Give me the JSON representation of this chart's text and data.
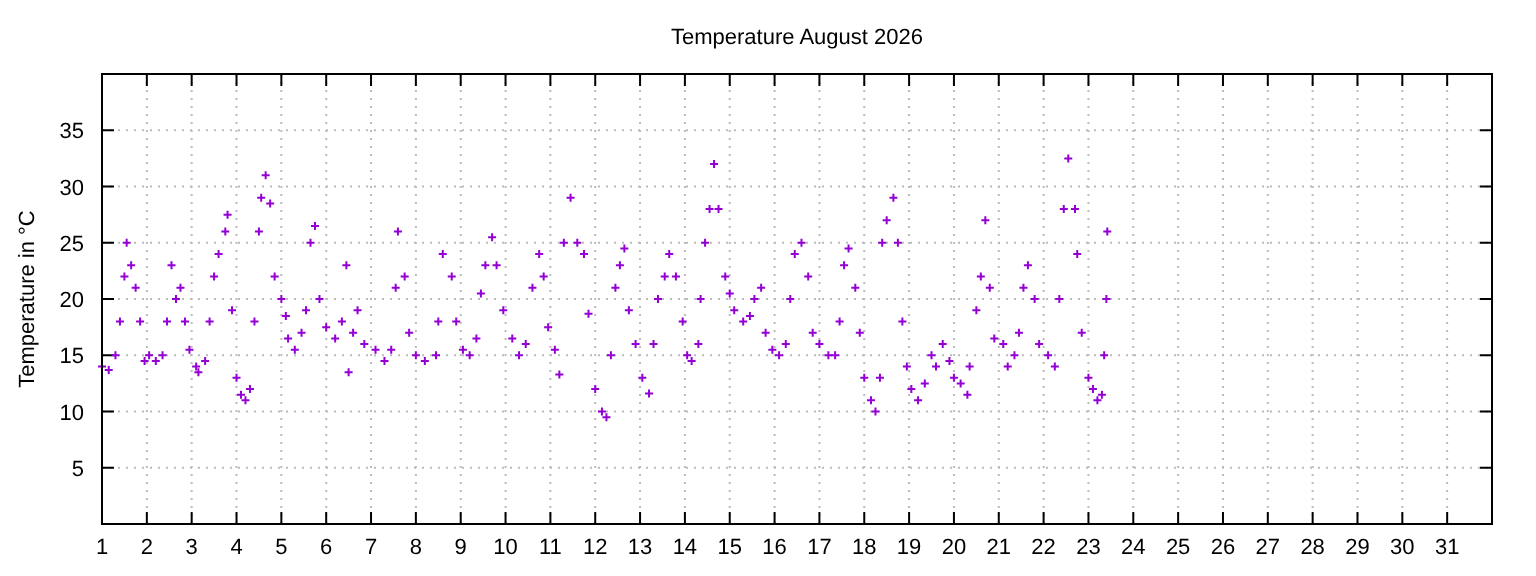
{
  "chart_data": {
    "type": "scatter",
    "title": "Temperature August 2026",
    "ylabel": "Temperature in °C",
    "x": [
      1.0,
      1.15,
      1.3,
      1.4,
      1.5,
      1.55,
      1.65,
      1.75,
      1.85,
      1.95,
      2.05,
      2.2,
      2.35,
      2.45,
      2.55,
      2.65,
      2.75,
      2.85,
      2.95,
      3.1,
      3.15,
      3.3,
      3.4,
      3.5,
      3.6,
      3.75,
      3.8,
      3.9,
      4.0,
      4.1,
      4.2,
      4.3,
      4.4,
      4.5,
      4.55,
      4.65,
      4.75,
      4.85,
      5.0,
      5.1,
      5.15,
      5.3,
      5.45,
      5.55,
      5.65,
      5.75,
      5.85,
      6.0,
      6.2,
      6.35,
      6.45,
      6.5,
      6.6,
      6.7,
      6.85,
      7.1,
      7.3,
      7.45,
      7.55,
      7.6,
      7.75,
      7.85,
      8.0,
      8.2,
      8.45,
      8.5,
      8.6,
      8.8,
      8.9,
      9.05,
      9.2,
      9.35,
      9.45,
      9.55,
      9.7,
      9.8,
      9.95,
      10.15,
      10.3,
      10.45,
      10.6,
      10.75,
      10.85,
      10.95,
      11.1,
      11.2,
      11.3,
      11.45,
      11.6,
      11.75,
      11.85,
      12.0,
      12.15,
      12.25,
      12.35,
      12.45,
      12.55,
      12.65,
      12.75,
      12.9,
      13.05,
      13.2,
      13.3,
      13.4,
      13.55,
      13.65,
      13.8,
      13.95,
      14.05,
      14.15,
      14.3,
      14.35,
      14.45,
      14.55,
      14.65,
      14.75,
      14.9,
      15.0,
      15.1,
      15.3,
      15.45,
      15.55,
      15.7,
      15.8,
      15.95,
      16.1,
      16.25,
      16.35,
      16.45,
      16.6,
      16.75,
      16.85,
      17.0,
      17.2,
      17.35,
      17.45,
      17.55,
      17.65,
      17.8,
      17.9,
      18.0,
      18.15,
      18.25,
      18.35,
      18.4,
      18.5,
      18.65,
      18.75,
      18.85,
      18.95,
      19.05,
      19.2,
      19.35,
      19.5,
      19.6,
      19.75,
      19.9,
      20.0,
      20.15,
      20.3,
      20.35,
      20.5,
      20.6,
      20.7,
      20.8,
      20.9,
      21.1,
      21.2,
      21.35,
      21.45,
      21.55,
      21.65,
      21.8,
      21.9,
      22.1,
      22.25,
      22.35,
      22.45,
      22.55,
      22.7,
      22.75,
      22.85,
      23.0,
      23.1,
      23.2,
      23.3,
      23.35,
      23.4,
      23.42
    ],
    "series": [
      {
        "color": "#9400d3",
        "values": [
          14,
          13.7,
          15,
          18,
          22,
          25,
          23,
          21,
          18,
          14.5,
          15,
          14.5,
          15,
          18,
          23,
          20,
          21,
          18,
          15.5,
          14,
          13.5,
          14.5,
          18,
          22,
          24,
          26,
          27.5,
          19,
          13,
          11.5,
          11,
          12,
          18,
          26,
          29,
          31,
          28.5,
          22,
          20,
          18.5,
          16.5,
          15.5,
          17,
          19,
          25,
          26.5,
          20,
          17.5,
          16.5,
          18,
          23,
          13.5,
          17,
          19,
          16,
          15.5,
          14.5,
          15.5,
          21,
          26,
          22,
          17,
          15,
          14.5,
          15,
          18,
          24,
          22,
          18,
          15.5,
          15,
          16.5,
          20.5,
          23,
          25.5,
          23,
          19,
          16.5,
          15,
          16,
          21,
          24,
          22,
          17.5,
          15.5,
          13.3,
          25,
          29,
          25,
          24,
          18.7,
          12,
          10,
          9.5,
          15,
          21,
          23,
          24.5,
          19,
          16,
          13,
          11.6,
          16,
          20,
          22,
          24,
          22,
          18,
          15,
          14.5,
          16,
          20,
          25,
          28,
          32,
          28,
          22,
          20.5,
          19,
          18,
          18.5,
          20,
          21,
          17,
          15.5,
          15,
          16,
          20,
          24,
          25,
          22,
          17,
          16,
          15,
          15,
          18,
          23,
          24.5,
          21,
          17,
          13,
          11,
          10,
          13,
          25,
          27,
          29,
          25,
          18,
          14,
          12,
          11,
          12.5,
          15,
          14,
          16,
          14.5,
          13,
          12.5,
          11.5,
          14,
          19,
          22,
          27,
          21,
          16.5,
          16,
          14,
          15,
          17,
          21,
          23,
          20,
          16,
          15,
          14,
          20,
          28,
          32.5,
          28,
          24,
          17,
          13,
          12,
          11,
          11.5,
          15,
          20,
          26
        ]
      }
    ],
    "xlim": [
      1,
      32
    ],
    "xticks": [
      1,
      2,
      3,
      4,
      5,
      6,
      7,
      8,
      9,
      10,
      11,
      12,
      13,
      14,
      15,
      16,
      17,
      18,
      19,
      20,
      21,
      22,
      23,
      24,
      25,
      26,
      27,
      28,
      29,
      30,
      31
    ],
    "ylim": [
      0,
      40
    ],
    "yticks": [
      5,
      10,
      15,
      20,
      25,
      30,
      35
    ],
    "grid": true,
    "marker": "cross"
  }
}
